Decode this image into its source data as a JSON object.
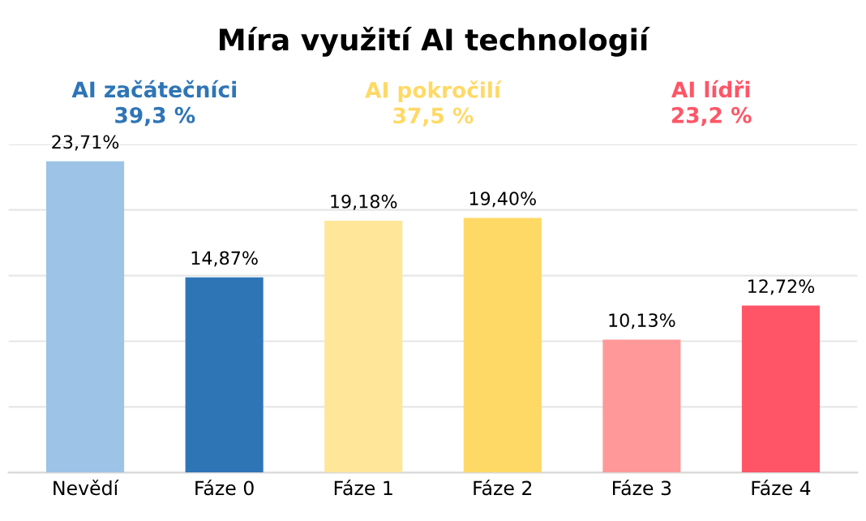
{
  "chart_data": {
    "type": "bar",
    "title": "Míra využití AI technologií",
    "categories": [
      "Nevědí",
      "Fáze 0",
      "Fáze 1",
      "Fáze 2",
      "Fáze 3",
      "Fáze 4"
    ],
    "values": [
      23.71,
      14.87,
      19.18,
      19.4,
      10.13,
      12.72
    ],
    "value_labels": [
      "23,71%",
      "14,87%",
      "19,18%",
      "19,40%",
      "10,13%",
      "12,72%"
    ],
    "colors": [
      "#9dc3e6",
      "#2e75b6",
      "#ffe699",
      "#ffd966",
      "#ff9999",
      "#ff5566"
    ],
    "annotations": [
      "AI začátečníci\n39,3 %",
      "AI pokročilí\n37,5 %",
      "AI lídři\n23,2 %"
    ],
    "ylim": [
      0,
      25
    ],
    "yticks": [
      {
        "value": 0,
        "label": null
      },
      {
        "value": 5,
        "label": null
      },
      {
        "value": 10,
        "label": null
      },
      {
        "value": 15,
        "label": null
      },
      {
        "value": 20,
        "label": null
      },
      {
        "value": 25,
        "label": null
      }
    ],
    "grid": "y",
    "tick_labels": "x"
  }
}
